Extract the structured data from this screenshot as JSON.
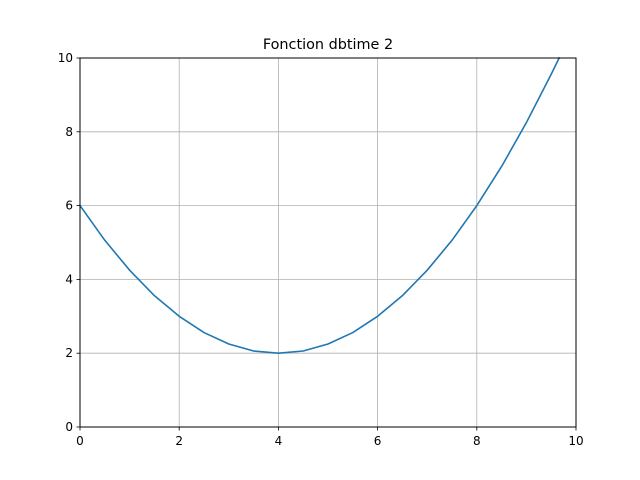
{
  "chart_data": {
    "type": "line",
    "title": "Fonction dbtime 2",
    "xlabel": "",
    "ylabel": "",
    "xlim": [
      0,
      10
    ],
    "ylim": [
      0,
      10
    ],
    "x_ticks": [
      0,
      2,
      4,
      6,
      8,
      10
    ],
    "y_ticks": [
      0,
      2,
      4,
      6,
      8,
      10
    ],
    "grid": true,
    "colors": {
      "line": "#1f77b4",
      "grid": "#b0b0b0",
      "axes": "#000000"
    },
    "series": [
      {
        "x": [
          0,
          0.5,
          1,
          1.5,
          2,
          2.5,
          3,
          3.5,
          4,
          4.5,
          5,
          5.5,
          6,
          6.5,
          7,
          7.5,
          8,
          8.5,
          9,
          9.5,
          9.66
        ],
        "values": [
          6,
          5.06,
          4.25,
          3.56,
          3,
          2.56,
          2.25,
          2.06,
          2,
          2.06,
          2.25,
          2.56,
          3,
          3.56,
          4.25,
          5.06,
          6,
          7.06,
          8.25,
          9.56,
          10
        ]
      }
    ]
  }
}
